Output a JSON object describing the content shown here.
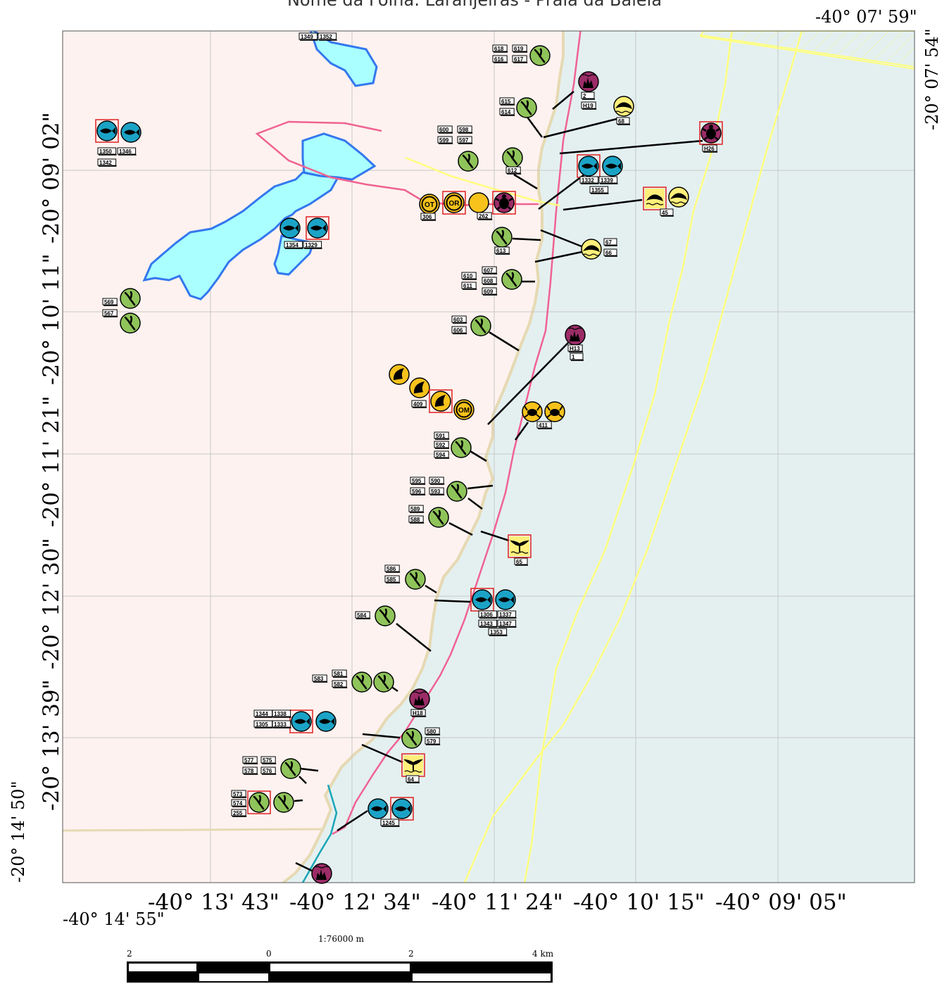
{
  "title": "Nome da Folha: Laranjeiras - Praia da Baleia",
  "top_lon": "-40° 07' 59\"",
  "right_lat": "-20° 07' 54\"",
  "bottom_left_lon": "-40° 14' 55\"",
  "left_bottom_lat": "-20° 14' 50\"",
  "lat_labels": [
    "-20° 09' 02\"",
    "-20° 10' 11\"",
    "-20° 11' 21\"",
    "-20° 12' 30\"",
    "-20° 13' 39\""
  ],
  "lon_labels": [
    "-40° 13' 43\"",
    "-40° 12' 34\"",
    "-40° 11' 24\"",
    "-40° 10' 15\"",
    "-40° 09' 05\""
  ],
  "scale": {
    "ratio": "1:76000 m",
    "ticks": [
      "2",
      "0",
      "2",
      "4 km"
    ]
  },
  "colors": {
    "land": "#fdf2ef",
    "sea": "#e4f0f0",
    "lagoon": "#aaffff",
    "lagoon_edge": "#3377ee",
    "shore": "#e6d9b3",
    "route_pink": "#f06292",
    "route_yellow": "#ffff80",
    "bird_green": "#8fc45a",
    "fish_teal": "#1ba3c6",
    "coral_purple": "#9b2c67",
    "marine_yellow": "#ffef7a",
    "shell_orange": "#f7c21b"
  },
  "markers": [
    {
      "id": "bird-618",
      "type": "bird",
      "labels": [
        "618",
        "619",
        "616",
        "617"
      ]
    },
    {
      "id": "coral-2",
      "type": "coral",
      "labels": [
        "2",
        "H19"
      ]
    },
    {
      "id": "bird-615",
      "type": "bird",
      "labels": [
        "615",
        "614"
      ]
    },
    {
      "id": "dolphin-68",
      "type": "dolphin",
      "labels": [
        "68"
      ]
    },
    {
      "id": "fish-1350",
      "type": "fish",
      "labels": [
        "1350",
        "1346",
        "1342"
      ]
    },
    {
      "id": "bird-600",
      "type": "bird",
      "labels": [
        "600",
        "598",
        "599",
        "597"
      ]
    },
    {
      "id": "bird-612",
      "type": "bird",
      "labels": [
        "612"
      ]
    },
    {
      "id": "turtle-h26",
      "type": "turtle",
      "labels": [
        "H26"
      ]
    },
    {
      "id": "fish-1332",
      "type": "fish",
      "labels": [
        "1332",
        "1339",
        "1355"
      ]
    },
    {
      "id": "fish-1349",
      "type": "fish",
      "labels": [
        "1349",
        "1352"
      ]
    },
    {
      "id": "other-306",
      "type": "other",
      "labels": [
        "306",
        "262"
      ]
    },
    {
      "id": "dolphin-45",
      "type": "dolphin",
      "labels": [
        "45"
      ]
    },
    {
      "id": "fish-1354",
      "type": "fish",
      "labels": [
        "1354",
        "1329"
      ]
    },
    {
      "id": "bird-613",
      "type": "bird",
      "labels": [
        "613"
      ]
    },
    {
      "id": "dolphin-67",
      "type": "dolphin",
      "labels": [
        "67",
        "66"
      ]
    },
    {
      "id": "bird-610",
      "type": "bird",
      "labels": [
        "610",
        "607",
        "611",
        "608",
        "609"
      ]
    },
    {
      "id": "bird-569",
      "type": "bird",
      "labels": [
        "569",
        "567"
      ]
    },
    {
      "id": "bird-603",
      "type": "bird",
      "labels": [
        "603",
        "606"
      ]
    },
    {
      "id": "coral-h13",
      "type": "coral",
      "labels": [
        "H13",
        "1"
      ]
    },
    {
      "id": "shell-409",
      "type": "shell",
      "labels": [
        "409"
      ]
    },
    {
      "id": "crab-411",
      "type": "crab",
      "labels": [
        "411"
      ]
    },
    {
      "id": "bird-591",
      "type": "bird",
      "labels": [
        "591",
        "592",
        "594"
      ]
    },
    {
      "id": "bird-595",
      "type": "bird",
      "labels": [
        "595",
        "590",
        "596",
        "593"
      ]
    },
    {
      "id": "bird-589",
      "type": "bird",
      "labels": [
        "589",
        "588"
      ]
    },
    {
      "id": "whale-65",
      "type": "whale",
      "labels": [
        "65"
      ]
    },
    {
      "id": "bird-586",
      "type": "bird",
      "labels": [
        "586",
        "585"
      ]
    },
    {
      "id": "fish-1306",
      "type": "fish",
      "labels": [
        "1306",
        "1337",
        "1343",
        "1347",
        "1353"
      ]
    },
    {
      "id": "bird-584",
      "type": "bird",
      "labels": [
        "584"
      ]
    },
    {
      "id": "bird-581",
      "type": "bird",
      "labels": [
        "581",
        "583",
        "582"
      ]
    },
    {
      "id": "coral-h18",
      "type": "coral",
      "labels": [
        "H18"
      ]
    },
    {
      "id": "fish-1344",
      "type": "fish",
      "labels": [
        "1344",
        "1338",
        "1305",
        "1333"
      ]
    },
    {
      "id": "bird-580",
      "type": "bird",
      "labels": [
        "580",
        "579"
      ]
    },
    {
      "id": "whale-64",
      "type": "whale",
      "labels": [
        "64"
      ]
    },
    {
      "id": "bird-577",
      "type": "bird",
      "labels": [
        "577",
        "575",
        "578",
        "576"
      ]
    },
    {
      "id": "bird-573",
      "type": "bird",
      "labels": [
        "573",
        "574",
        "255"
      ]
    },
    {
      "id": "fish-1245",
      "type": "fish",
      "labels": [
        "1245"
      ]
    },
    {
      "id": "coral-bottom",
      "type": "coral",
      "labels": []
    }
  ]
}
